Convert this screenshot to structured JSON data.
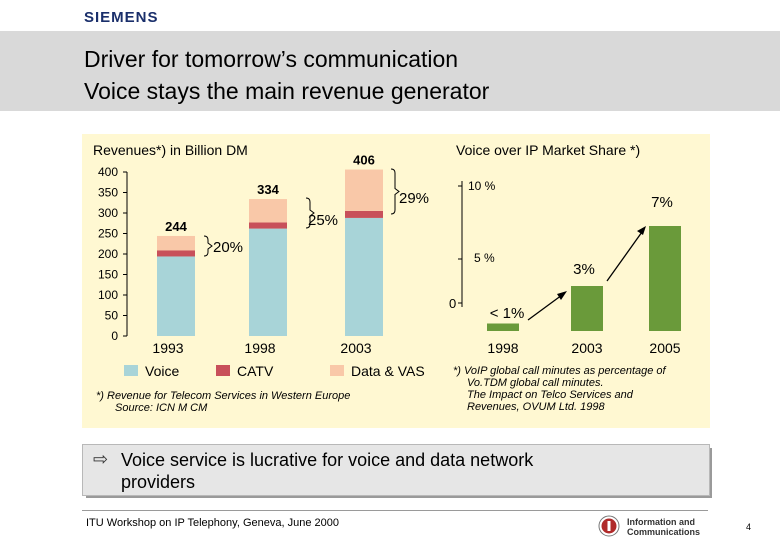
{
  "header": {
    "brand": "SIEMENS",
    "title_line1": "Driver for tomorrow’s communication",
    "title_line2": "Voice stays the main revenue generator"
  },
  "chart_data": [
    {
      "type": "bar",
      "stacked": true,
      "title": "Revenues*) in Billion DM",
      "categories": [
        "1993",
        "1998",
        "2003"
      ],
      "ylim": [
        0,
        400
      ],
      "yticks": [
        0,
        50,
        100,
        150,
        200,
        250,
        300,
        350,
        400
      ],
      "series": [
        {
          "name": "Voice",
          "color": "#a8d4d8",
          "values": [
            194,
            262,
            288
          ]
        },
        {
          "name": "CATV",
          "color": "#c8505a",
          "values": [
            15,
            15,
            17
          ]
        },
        {
          "name": "Data & VAS",
          "color": "#f9c8a8",
          "values": [
            35,
            57,
            101
          ]
        }
      ],
      "totals": [
        "244",
        "334",
        "406"
      ],
      "growth_labels": [
        "20%",
        "25%",
        "29%"
      ],
      "footnote_line1": "*) Revenue for Telecom Services in Western Europe",
      "footnote_line2": "Source: ICN M CM"
    },
    {
      "type": "bar",
      "title": "Voice over IP Market Share *)",
      "categories": [
        "1998",
        "2003",
        "2005"
      ],
      "values": [
        0.5,
        3,
        7
      ],
      "value_labels": [
        "< 1%",
        "3%",
        "7%"
      ],
      "ylim": [
        0,
        10
      ],
      "yticks": [
        "0",
        "5 %",
        "10 %"
      ],
      "color": "#6a9a3a",
      "footnote_lines": [
        "*) VoIP global call minutes as percentage of",
        "Vo.TDM global call minutes.",
        "The Impact on Telco Services and",
        "Revenues, OVUM Ltd. 1998"
      ]
    }
  ],
  "callout": {
    "arrow": "⇨",
    "text_line1": "Voice service is lucrative for voice and data network",
    "text_line2": "providers"
  },
  "footer": {
    "workshop": "ITU Workshop on IP Telephony, Geneva, June 2000",
    "logo_line1": "Information and",
    "logo_line2": "Communications",
    "page_number": "4"
  }
}
